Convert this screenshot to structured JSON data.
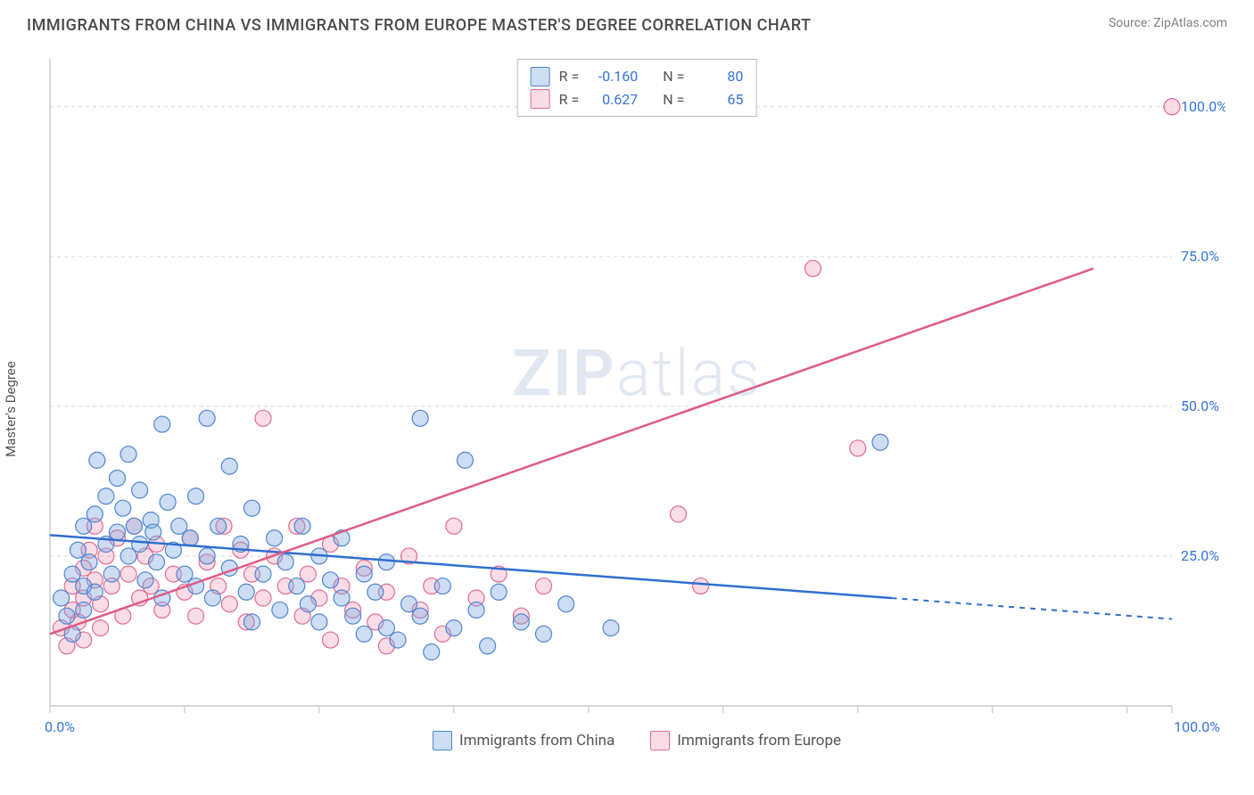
{
  "title": "IMMIGRANTS FROM CHINA VS IMMIGRANTS FROM EUROPE MASTER'S DEGREE CORRELATION CHART",
  "source": "Source: ZipAtlas.com",
  "watermark_bold": "ZIP",
  "watermark_light": "atlas",
  "ylabel": "Master's Degree",
  "chart": {
    "type": "scatter",
    "xlim": [
      0,
      100
    ],
    "ylim": [
      0,
      108
    ],
    "grid_y": [
      25,
      50,
      75,
      100
    ],
    "grid_y_labels": [
      "25.0%",
      "50.0%",
      "75.0%",
      "100.0%"
    ],
    "x_ticks": [
      0,
      12,
      24,
      36,
      48,
      60,
      72,
      84,
      96,
      100
    ],
    "x_axis_labels": {
      "left": "0.0%",
      "right": "100.0%"
    },
    "grid_color": "#d9d9d9",
    "axis_color": "#bfbfbf",
    "background_color": "#ffffff",
    "marker_radius": 9,
    "marker_stroke_width": 1.2,
    "series": {
      "china": {
        "label": "Immigrants from China",
        "fill": "rgba(120,165,225,0.38)",
        "stroke": "#4f86cf",
        "R": "-0.160",
        "N": "80",
        "trend": {
          "x1": 0,
          "y1": 28.5,
          "x2": 100,
          "y2": 14.5,
          "solid_until_x": 75
        },
        "points": [
          [
            1,
            18
          ],
          [
            1.5,
            15
          ],
          [
            2,
            12
          ],
          [
            2,
            22
          ],
          [
            2.5,
            26
          ],
          [
            3,
            20
          ],
          [
            3,
            30
          ],
          [
            3.5,
            24
          ],
          [
            4,
            32
          ],
          [
            4,
            19
          ],
          [
            4.2,
            41
          ],
          [
            5,
            27
          ],
          [
            5,
            35
          ],
          [
            5.5,
            22
          ],
          [
            6,
            38
          ],
          [
            6,
            29
          ],
          [
            6.5,
            33
          ],
          [
            7,
            25
          ],
          [
            7,
            42
          ],
          [
            7.5,
            30
          ],
          [
            8,
            36
          ],
          [
            8,
            27
          ],
          [
            8.5,
            21
          ],
          [
            9,
            31
          ],
          [
            9.2,
            29
          ],
          [
            9.5,
            24
          ],
          [
            10,
            18
          ],
          [
            10,
            47
          ],
          [
            10.5,
            34
          ],
          [
            11,
            26
          ],
          [
            11.5,
            30
          ],
          [
            12,
            22
          ],
          [
            12.5,
            28
          ],
          [
            13,
            20
          ],
          [
            13,
            35
          ],
          [
            14,
            25
          ],
          [
            14,
            48
          ],
          [
            14.5,
            18
          ],
          [
            15,
            30
          ],
          [
            16,
            23
          ],
          [
            16,
            40
          ],
          [
            17,
            27
          ],
          [
            17.5,
            19
          ],
          [
            18,
            33
          ],
          [
            18,
            14
          ],
          [
            19,
            22
          ],
          [
            20,
            28
          ],
          [
            20.5,
            16
          ],
          [
            21,
            24
          ],
          [
            22,
            20
          ],
          [
            22.5,
            30
          ],
          [
            23,
            17
          ],
          [
            24,
            14
          ],
          [
            24,
            25
          ],
          [
            25,
            21
          ],
          [
            26,
            18
          ],
          [
            26,
            28
          ],
          [
            27,
            15
          ],
          [
            28,
            12
          ],
          [
            28,
            22
          ],
          [
            29,
            19
          ],
          [
            30,
            13
          ],
          [
            30,
            24
          ],
          [
            31,
            11
          ],
          [
            32,
            17
          ],
          [
            33,
            48
          ],
          [
            33,
            15
          ],
          [
            34,
            9
          ],
          [
            35,
            20
          ],
          [
            36,
            13
          ],
          [
            37,
            41
          ],
          [
            38,
            16
          ],
          [
            39,
            10
          ],
          [
            40,
            19
          ],
          [
            42,
            14
          ],
          [
            44,
            12
          ],
          [
            46,
            17
          ],
          [
            50,
            13
          ],
          [
            74,
            44
          ],
          [
            3,
            16
          ]
        ]
      },
      "europe": {
        "label": "Immigrants from Europe",
        "fill": "rgba(235,140,170,0.30)",
        "stroke": "#e26b94",
        "R": "0.627",
        "N": "65",
        "trend": {
          "x1": 0,
          "y1": 12,
          "x2": 93,
          "y2": 73,
          "solid_until_x": 93
        },
        "points": [
          [
            1,
            13
          ],
          [
            1.5,
            10
          ],
          [
            2,
            16
          ],
          [
            2,
            20
          ],
          [
            2.5,
            14
          ],
          [
            3,
            23
          ],
          [
            3,
            18
          ],
          [
            3.5,
            26
          ],
          [
            4,
            21
          ],
          [
            4,
            30
          ],
          [
            4.5,
            17
          ],
          [
            5,
            25
          ],
          [
            5.5,
            20
          ],
          [
            6,
            28
          ],
          [
            6.5,
            15
          ],
          [
            7,
            22
          ],
          [
            7.5,
            30
          ],
          [
            8,
            18
          ],
          [
            8.5,
            25
          ],
          [
            9,
            20
          ],
          [
            9.5,
            27
          ],
          [
            10,
            16
          ],
          [
            11,
            22
          ],
          [
            12,
            19
          ],
          [
            12.5,
            28
          ],
          [
            13,
            15
          ],
          [
            14,
            24
          ],
          [
            15,
            20
          ],
          [
            15.5,
            30
          ],
          [
            16,
            17
          ],
          [
            17,
            26
          ],
          [
            17.5,
            14
          ],
          [
            18,
            22
          ],
          [
            19,
            48
          ],
          [
            19,
            18
          ],
          [
            20,
            25
          ],
          [
            21,
            20
          ],
          [
            22,
            30
          ],
          [
            22.5,
            15
          ],
          [
            23,
            22
          ],
          [
            24,
            18
          ],
          [
            25,
            27
          ],
          [
            25,
            11
          ],
          [
            26,
            20
          ],
          [
            27,
            16
          ],
          [
            28,
            23
          ],
          [
            29,
            14
          ],
          [
            30,
            19
          ],
          [
            30,
            10
          ],
          [
            32,
            25
          ],
          [
            33,
            16
          ],
          [
            34,
            20
          ],
          [
            35,
            12
          ],
          [
            36,
            30
          ],
          [
            38,
            18
          ],
          [
            40,
            22
          ],
          [
            42,
            15
          ],
          [
            44,
            20
          ],
          [
            56,
            32
          ],
          [
            58,
            20
          ],
          [
            68,
            73
          ],
          [
            72,
            43
          ],
          [
            100,
            100
          ],
          [
            3,
            11
          ],
          [
            4.5,
            13
          ]
        ]
      }
    }
  }
}
